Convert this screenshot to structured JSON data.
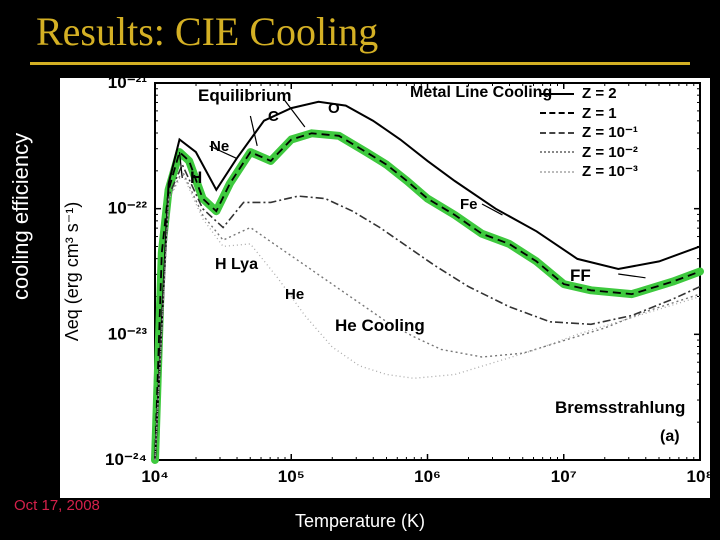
{
  "title": "Results: CIE Cooling",
  "date": "Oct 17, 2008",
  "axis": {
    "ylabel": "cooling efficiency",
    "ylabel_inner": "Λeq  (erg cm³ s⁻¹)",
    "xlabel": "Temperature (K)",
    "xlim_log": [
      4,
      8
    ],
    "ylim_log": [
      -24,
      -21
    ],
    "xticks": [
      "10⁴",
      "10⁵",
      "10⁶",
      "10⁷",
      "10⁸"
    ],
    "yticks": [
      "10⁻²⁴",
      "10⁻²³",
      "10⁻²²",
      "10⁻²¹"
    ]
  },
  "colors": {
    "bg": "#000000",
    "title": "#d4b024",
    "paper": "#ffffff",
    "axis_line": "#000000",
    "highlight": "#3ec93e",
    "dash1": "#333333",
    "date": "#d4204a"
  },
  "legend": [
    {
      "label": "Z = 2",
      "style": "2px solid #000000"
    },
    {
      "label": "Z = 1",
      "style": "2px dashed #000000"
    },
    {
      "label": "Z = 10⁻¹",
      "style": "2px dashed #555555",
      "dash": "1,3"
    },
    {
      "label": "Z = 10⁻²",
      "style": "2px dotted #888888"
    },
    {
      "label": "Z = 10⁻³",
      "style": "2px dotted #bbbbbb"
    }
  ],
  "annotations": {
    "equilibrium": "Equilibrium",
    "metal_line": "Metal Line Cooling",
    "h": "H",
    "hlya": "H Lya",
    "he": "He",
    "hecool": "He Cooling",
    "ff": "FF",
    "brems": "Bremsstrahlung",
    "fe": "Fe",
    "ne": "Ne",
    "o": "O",
    "c": "C",
    "panel": "(a)"
  },
  "highlight_curve_logT_logL": [
    [
      4.0,
      -24.0
    ],
    [
      4.05,
      -22.35
    ],
    [
      4.1,
      -21.85
    ],
    [
      4.18,
      -21.55
    ],
    [
      4.25,
      -21.62
    ],
    [
      4.35,
      -21.92
    ],
    [
      4.45,
      -22.02
    ],
    [
      4.55,
      -21.8
    ],
    [
      4.7,
      -21.55
    ],
    [
      4.85,
      -21.62
    ],
    [
      5.0,
      -21.45
    ],
    [
      5.15,
      -21.4
    ],
    [
      5.35,
      -21.42
    ],
    [
      5.55,
      -21.55
    ],
    [
      5.7,
      -21.65
    ],
    [
      5.85,
      -21.78
    ],
    [
      6.0,
      -21.92
    ],
    [
      6.2,
      -22.05
    ],
    [
      6.4,
      -22.2
    ],
    [
      6.6,
      -22.28
    ],
    [
      6.8,
      -22.42
    ],
    [
      7.0,
      -22.6
    ],
    [
      7.2,
      -22.65
    ],
    [
      7.5,
      -22.68
    ],
    [
      7.8,
      -22.58
    ],
    [
      8.0,
      -22.5
    ]
  ],
  "curve_Z2_logT_logL": [
    [
      4.0,
      -24.0
    ],
    [
      4.1,
      -21.8
    ],
    [
      4.18,
      -21.45
    ],
    [
      4.3,
      -21.55
    ],
    [
      4.45,
      -21.85
    ],
    [
      4.6,
      -21.6
    ],
    [
      4.8,
      -21.3
    ],
    [
      5.0,
      -21.2
    ],
    [
      5.2,
      -21.15
    ],
    [
      5.4,
      -21.18
    ],
    [
      5.6,
      -21.3
    ],
    [
      5.8,
      -21.45
    ],
    [
      6.0,
      -21.62
    ],
    [
      6.2,
      -21.78
    ],
    [
      6.5,
      -22.0
    ],
    [
      6.8,
      -22.18
    ],
    [
      7.1,
      -22.4
    ],
    [
      7.4,
      -22.48
    ],
    [
      7.7,
      -22.42
    ],
    [
      8.0,
      -22.3
    ]
  ],
  "curve_Zm1_logT_logL": [
    [
      4.0,
      -24.0
    ],
    [
      4.1,
      -21.9
    ],
    [
      4.2,
      -21.65
    ],
    [
      4.35,
      -22.0
    ],
    [
      4.5,
      -22.15
    ],
    [
      4.65,
      -21.95
    ],
    [
      4.85,
      -21.95
    ],
    [
      5.05,
      -21.9
    ],
    [
      5.25,
      -21.92
    ],
    [
      5.45,
      -22.02
    ],
    [
      5.65,
      -22.15
    ],
    [
      5.85,
      -22.3
    ],
    [
      6.05,
      -22.45
    ],
    [
      6.3,
      -22.62
    ],
    [
      6.6,
      -22.78
    ],
    [
      6.9,
      -22.9
    ],
    [
      7.2,
      -22.92
    ],
    [
      7.5,
      -22.85
    ],
    [
      7.8,
      -22.72
    ],
    [
      8.0,
      -22.62
    ]
  ],
  "curve_Zm2_logT_logL": [
    [
      4.0,
      -24.0
    ],
    [
      4.1,
      -21.92
    ],
    [
      4.2,
      -21.7
    ],
    [
      4.35,
      -22.05
    ],
    [
      4.5,
      -22.25
    ],
    [
      4.7,
      -22.15
    ],
    [
      4.9,
      -22.3
    ],
    [
      5.1,
      -22.45
    ],
    [
      5.3,
      -22.6
    ],
    [
      5.5,
      -22.75
    ],
    [
      5.7,
      -22.9
    ],
    [
      5.9,
      -23.02
    ],
    [
      6.1,
      -23.12
    ],
    [
      6.4,
      -23.18
    ],
    [
      6.7,
      -23.15
    ],
    [
      7.0,
      -23.05
    ],
    [
      7.3,
      -22.95
    ],
    [
      7.6,
      -22.82
    ],
    [
      8.0,
      -22.68
    ]
  ],
  "curve_Zm3_logT_logL": [
    [
      4.0,
      -24.0
    ],
    [
      4.1,
      -21.93
    ],
    [
      4.2,
      -21.72
    ],
    [
      4.35,
      -22.08
    ],
    [
      4.5,
      -22.3
    ],
    [
      4.7,
      -22.28
    ],
    [
      4.9,
      -22.55
    ],
    [
      5.1,
      -22.85
    ],
    [
      5.3,
      -23.1
    ],
    [
      5.5,
      -23.25
    ],
    [
      5.7,
      -23.32
    ],
    [
      5.9,
      -23.35
    ],
    [
      6.2,
      -23.32
    ],
    [
      6.5,
      -23.22
    ],
    [
      6.8,
      -23.12
    ],
    [
      7.1,
      -23.0
    ],
    [
      7.4,
      -22.9
    ],
    [
      7.7,
      -22.8
    ],
    [
      8.0,
      -22.7
    ]
  ],
  "font_sizes": {
    "title": 40,
    "axis_label": 20,
    "tick": 16,
    "ann": 15,
    "ann_big": 18
  }
}
